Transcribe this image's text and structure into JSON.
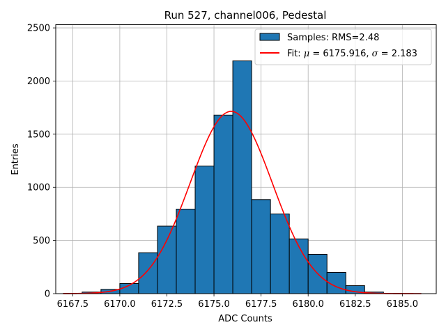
{
  "chart_data": {
    "type": "bar",
    "title": "Run 527, channel006, Pedestal",
    "xlabel": "ADC Counts",
    "ylabel": "Entries",
    "xlim": [
      6166.6,
      6186.8
    ],
    "ylim": [
      0,
      2530
    ],
    "grid": true,
    "legend_position": "top-right",
    "x_ticks": [
      6167.5,
      6170.0,
      6172.5,
      6175.0,
      6177.5,
      6180.0,
      6182.5,
      6185.0
    ],
    "x_tick_labels": [
      "6167.5",
      "6170.0",
      "6172.5",
      "6175.0",
      "6177.5",
      "6180.0",
      "6182.5",
      "6185.0"
    ],
    "y_ticks": [
      0,
      500,
      1000,
      1500,
      2000,
      2500
    ],
    "y_tick_labels": [
      "0",
      "500",
      "1000",
      "1500",
      "2000",
      "2500"
    ],
    "histogram": {
      "name": "Samples: RMS=2.48",
      "color": "#1f77b4",
      "edge_color": "#000000",
      "bin_edges": [
        6167,
        6168,
        6169,
        6170,
        6171,
        6172,
        6173,
        6174,
        6175,
        6176,
        6177,
        6178,
        6179,
        6180,
        6181,
        6182,
        6183,
        6184,
        6185,
        6186
      ],
      "counts": [
        2,
        15,
        40,
        95,
        385,
        635,
        795,
        1200,
        1680,
        2190,
        885,
        750,
        515,
        370,
        200,
        75,
        15,
        2,
        1
      ]
    },
    "fit": {
      "name_prefix": "Fit: ",
      "mu_symbol": "μ",
      "sigma_symbol": "σ",
      "mu_text": " = 6175.916, ",
      "sigma_text": " = 2.183",
      "color": "#ff0000",
      "mu": 6175.916,
      "sigma": 2.183,
      "amplitude": 1715,
      "x_range": [
        6167,
        6186
      ]
    }
  }
}
